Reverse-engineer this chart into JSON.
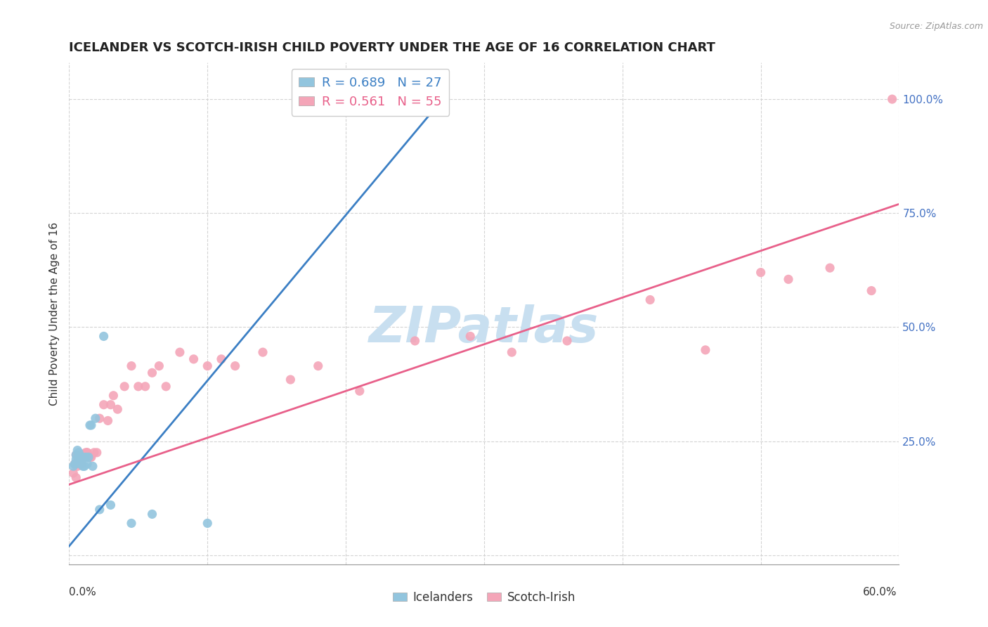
{
  "title": "ICELANDER VS SCOTCH-IRISH CHILD POVERTY UNDER THE AGE OF 16 CORRELATION CHART",
  "source": "Source: ZipAtlas.com",
  "ylabel": "Child Poverty Under the Age of 16",
  "ytick_values": [
    0.0,
    0.25,
    0.5,
    0.75,
    1.0
  ],
  "ytick_labels": [
    "",
    "25.0%",
    "50.0%",
    "75.0%",
    "100.0%"
  ],
  "xlim": [
    0.0,
    0.6
  ],
  "ylim": [
    -0.02,
    1.08
  ],
  "blue_color": "#92c5de",
  "pink_color": "#f4a5b8",
  "blue_line_color": "#3b7fc4",
  "pink_line_color": "#e8608a",
  "blue_trend_x": [
    0.0,
    0.27
  ],
  "blue_trend_y": [
    0.02,
    1.0
  ],
  "pink_trend_x": [
    0.0,
    0.6
  ],
  "pink_trend_y": [
    0.155,
    0.77
  ],
  "icelander_x": [
    0.003,
    0.004,
    0.005,
    0.005,
    0.006,
    0.007,
    0.007,
    0.008,
    0.008,
    0.009,
    0.01,
    0.01,
    0.011,
    0.012,
    0.013,
    0.014,
    0.015,
    0.016,
    0.017,
    0.019,
    0.022,
    0.025,
    0.03,
    0.045,
    0.06,
    0.1,
    0.27
  ],
  "icelander_y": [
    0.195,
    0.2,
    0.21,
    0.22,
    0.23,
    0.215,
    0.225,
    0.21,
    0.2,
    0.215,
    0.215,
    0.195,
    0.195,
    0.215,
    0.2,
    0.215,
    0.285,
    0.285,
    0.195,
    0.3,
    0.1,
    0.48,
    0.11,
    0.07,
    0.09,
    0.07,
    1.0
  ],
  "scotch_x": [
    0.003,
    0.004,
    0.005,
    0.005,
    0.006,
    0.006,
    0.007,
    0.008,
    0.008,
    0.009,
    0.009,
    0.01,
    0.01,
    0.011,
    0.012,
    0.013,
    0.013,
    0.014,
    0.015,
    0.016,
    0.018,
    0.02,
    0.022,
    0.025,
    0.028,
    0.03,
    0.032,
    0.035,
    0.04,
    0.045,
    0.05,
    0.055,
    0.06,
    0.065,
    0.07,
    0.08,
    0.09,
    0.1,
    0.11,
    0.12,
    0.14,
    0.16,
    0.18,
    0.21,
    0.25,
    0.29,
    0.32,
    0.36,
    0.42,
    0.46,
    0.5,
    0.52,
    0.55,
    0.58,
    0.595
  ],
  "scotch_y": [
    0.18,
    0.2,
    0.17,
    0.22,
    0.195,
    0.215,
    0.2,
    0.215,
    0.21,
    0.2,
    0.215,
    0.215,
    0.22,
    0.215,
    0.225,
    0.225,
    0.225,
    0.215,
    0.215,
    0.215,
    0.225,
    0.225,
    0.3,
    0.33,
    0.295,
    0.33,
    0.35,
    0.32,
    0.37,
    0.415,
    0.37,
    0.37,
    0.4,
    0.415,
    0.37,
    0.445,
    0.43,
    0.415,
    0.43,
    0.415,
    0.445,
    0.385,
    0.415,
    0.36,
    0.47,
    0.48,
    0.445,
    0.47,
    0.56,
    0.45,
    0.62,
    0.605,
    0.63,
    0.58,
    1.0
  ],
  "grid_color": "#d0d0d0",
  "background_color": "#ffffff",
  "title_fontsize": 13,
  "axis_label_fontsize": 11,
  "tick_fontsize": 11,
  "tick_color": "#4472c4",
  "watermark_text": "ZIPatlas",
  "watermark_color": "#c8dff0",
  "legend_R_blue": "R = 0.689",
  "legend_N_blue": "N = 27",
  "legend_R_pink": "R = 0.561",
  "legend_N_pink": "N = 55"
}
